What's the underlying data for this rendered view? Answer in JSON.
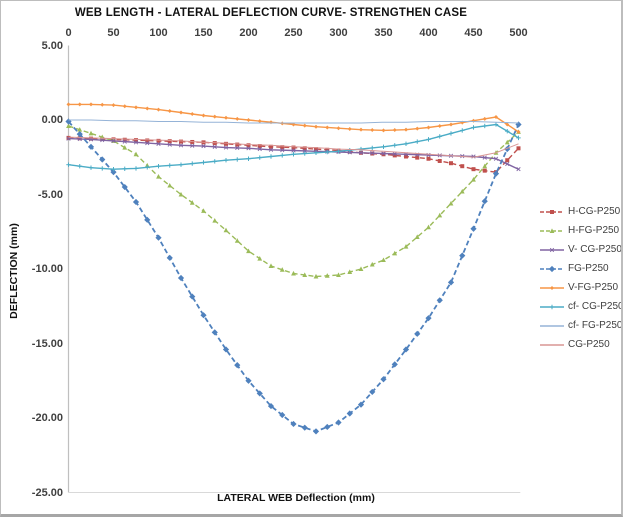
{
  "chart_data": {
    "type": "line",
    "title": "WEB LENGTH - LATERAL DEFLECTION CURVE- STRENGTHEN CASE",
    "xlabel": "LATERAL WEB Deflection (mm)",
    "ylabel": "DEFLECTION (mm)",
    "xlim": [
      0,
      500
    ],
    "ylim": [
      -25,
      5
    ],
    "grid": false,
    "legend_position": "right",
    "x_ticks": [
      0,
      50,
      100,
      150,
      200,
      250,
      300,
      350,
      400,
      450,
      500
    ],
    "y_ticks": [
      "5.00",
      "0.00",
      "-5.00",
      "-10.00",
      "-15.00",
      "-20.00",
      "-25.00"
    ],
    "x": [
      0,
      25,
      50,
      75,
      100,
      125,
      150,
      175,
      200,
      225,
      250,
      275,
      300,
      325,
      350,
      375,
      400,
      425,
      450,
      475,
      500
    ],
    "series": [
      {
        "name": "H-CG-P250",
        "color": "#C0504D",
        "dash": "dashed",
        "marker": "square",
        "values": [
          -1.2,
          -1.25,
          -1.3,
          -1.35,
          -1.4,
          -1.45,
          -1.5,
          -1.6,
          -1.7,
          -1.8,
          -1.85,
          -1.95,
          -2.05,
          -2.2,
          -2.3,
          -2.45,
          -2.6,
          -2.9,
          -3.3,
          -3.5,
          -1.9
        ]
      },
      {
        "name": "H-FG-P250",
        "color": "#9BBB59",
        "dash": "dashed",
        "marker": "triangle",
        "values": [
          -0.4,
          -0.9,
          -1.4,
          -2.3,
          -3.8,
          -5.0,
          -6.1,
          -7.4,
          -8.8,
          -9.8,
          -10.3,
          -10.5,
          -10.4,
          -10.0,
          -9.4,
          -8.5,
          -7.2,
          -5.6,
          -4.0,
          -2.2,
          -0.8
        ]
      },
      {
        "name": "V- CG-P250",
        "color": "#8064A2",
        "dash": "solid",
        "marker": "x",
        "values": [
          -1.25,
          -1.3,
          -1.4,
          -1.5,
          -1.6,
          -1.7,
          -1.75,
          -1.85,
          -1.9,
          -2.0,
          -2.05,
          -2.1,
          -2.15,
          -2.2,
          -2.25,
          -2.3,
          -2.35,
          -2.4,
          -2.45,
          -2.6,
          -3.3
        ]
      },
      {
        "name": "FG-P250",
        "color": "#4F81BD",
        "dash": "dashed",
        "marker": "diamond",
        "values": [
          -0.1,
          -1.8,
          -3.5,
          -5.5,
          -7.9,
          -10.6,
          -13.1,
          -15.4,
          -17.5,
          -19.2,
          -20.4,
          -20.9,
          -20.3,
          -19.1,
          -17.4,
          -15.4,
          -13.3,
          -10.9,
          -7.3,
          -3.6,
          -0.3
        ]
      },
      {
        "name": "V-FG-P250",
        "color": "#F79646",
        "dash": "solid",
        "marker": "diamond-small",
        "values": [
          1.05,
          1.05,
          1.0,
          0.85,
          0.7,
          0.5,
          0.3,
          0.15,
          0.0,
          -0.15,
          -0.3,
          -0.45,
          -0.55,
          -0.65,
          -0.7,
          -0.65,
          -0.5,
          -0.3,
          -0.05,
          0.2,
          -0.8
        ]
      },
      {
        "name": "cf- CG-P250",
        "color": "#4BACC6",
        "dash": "solid",
        "marker": "plus",
        "values": [
          -3.0,
          -3.2,
          -3.3,
          -3.25,
          -3.1,
          -3.0,
          -2.85,
          -2.7,
          -2.6,
          -2.45,
          -2.3,
          -2.2,
          -2.1,
          -1.95,
          -1.8,
          -1.6,
          -1.3,
          -0.9,
          -0.5,
          -0.3,
          -1.2
        ]
      },
      {
        "name": "cf- FG-P250",
        "color": "#95B3D7",
        "dash": "solid",
        "marker": "none",
        "values": [
          0.0,
          0.0,
          -0.05,
          -0.05,
          -0.1,
          -0.1,
          -0.15,
          -0.15,
          -0.2,
          -0.2,
          -0.2,
          -0.2,
          -0.2,
          -0.2,
          -0.15,
          -0.15,
          -0.1,
          -0.1,
          -0.1,
          -0.15,
          -0.2
        ]
      },
      {
        "name": "CG-P250",
        "color": "#D99694",
        "dash": "solid",
        "marker": "none",
        "values": [
          -1.15,
          -1.2,
          -1.25,
          -1.3,
          -1.35,
          -1.4,
          -1.5,
          -1.55,
          -1.65,
          -1.7,
          -1.8,
          -1.85,
          -1.95,
          -2.0,
          -2.1,
          -2.2,
          -2.3,
          -2.4,
          -2.5,
          -2.2,
          -1.6
        ]
      }
    ],
    "axis_color": "#bfbfbf",
    "tick_label_color": "#404040"
  }
}
